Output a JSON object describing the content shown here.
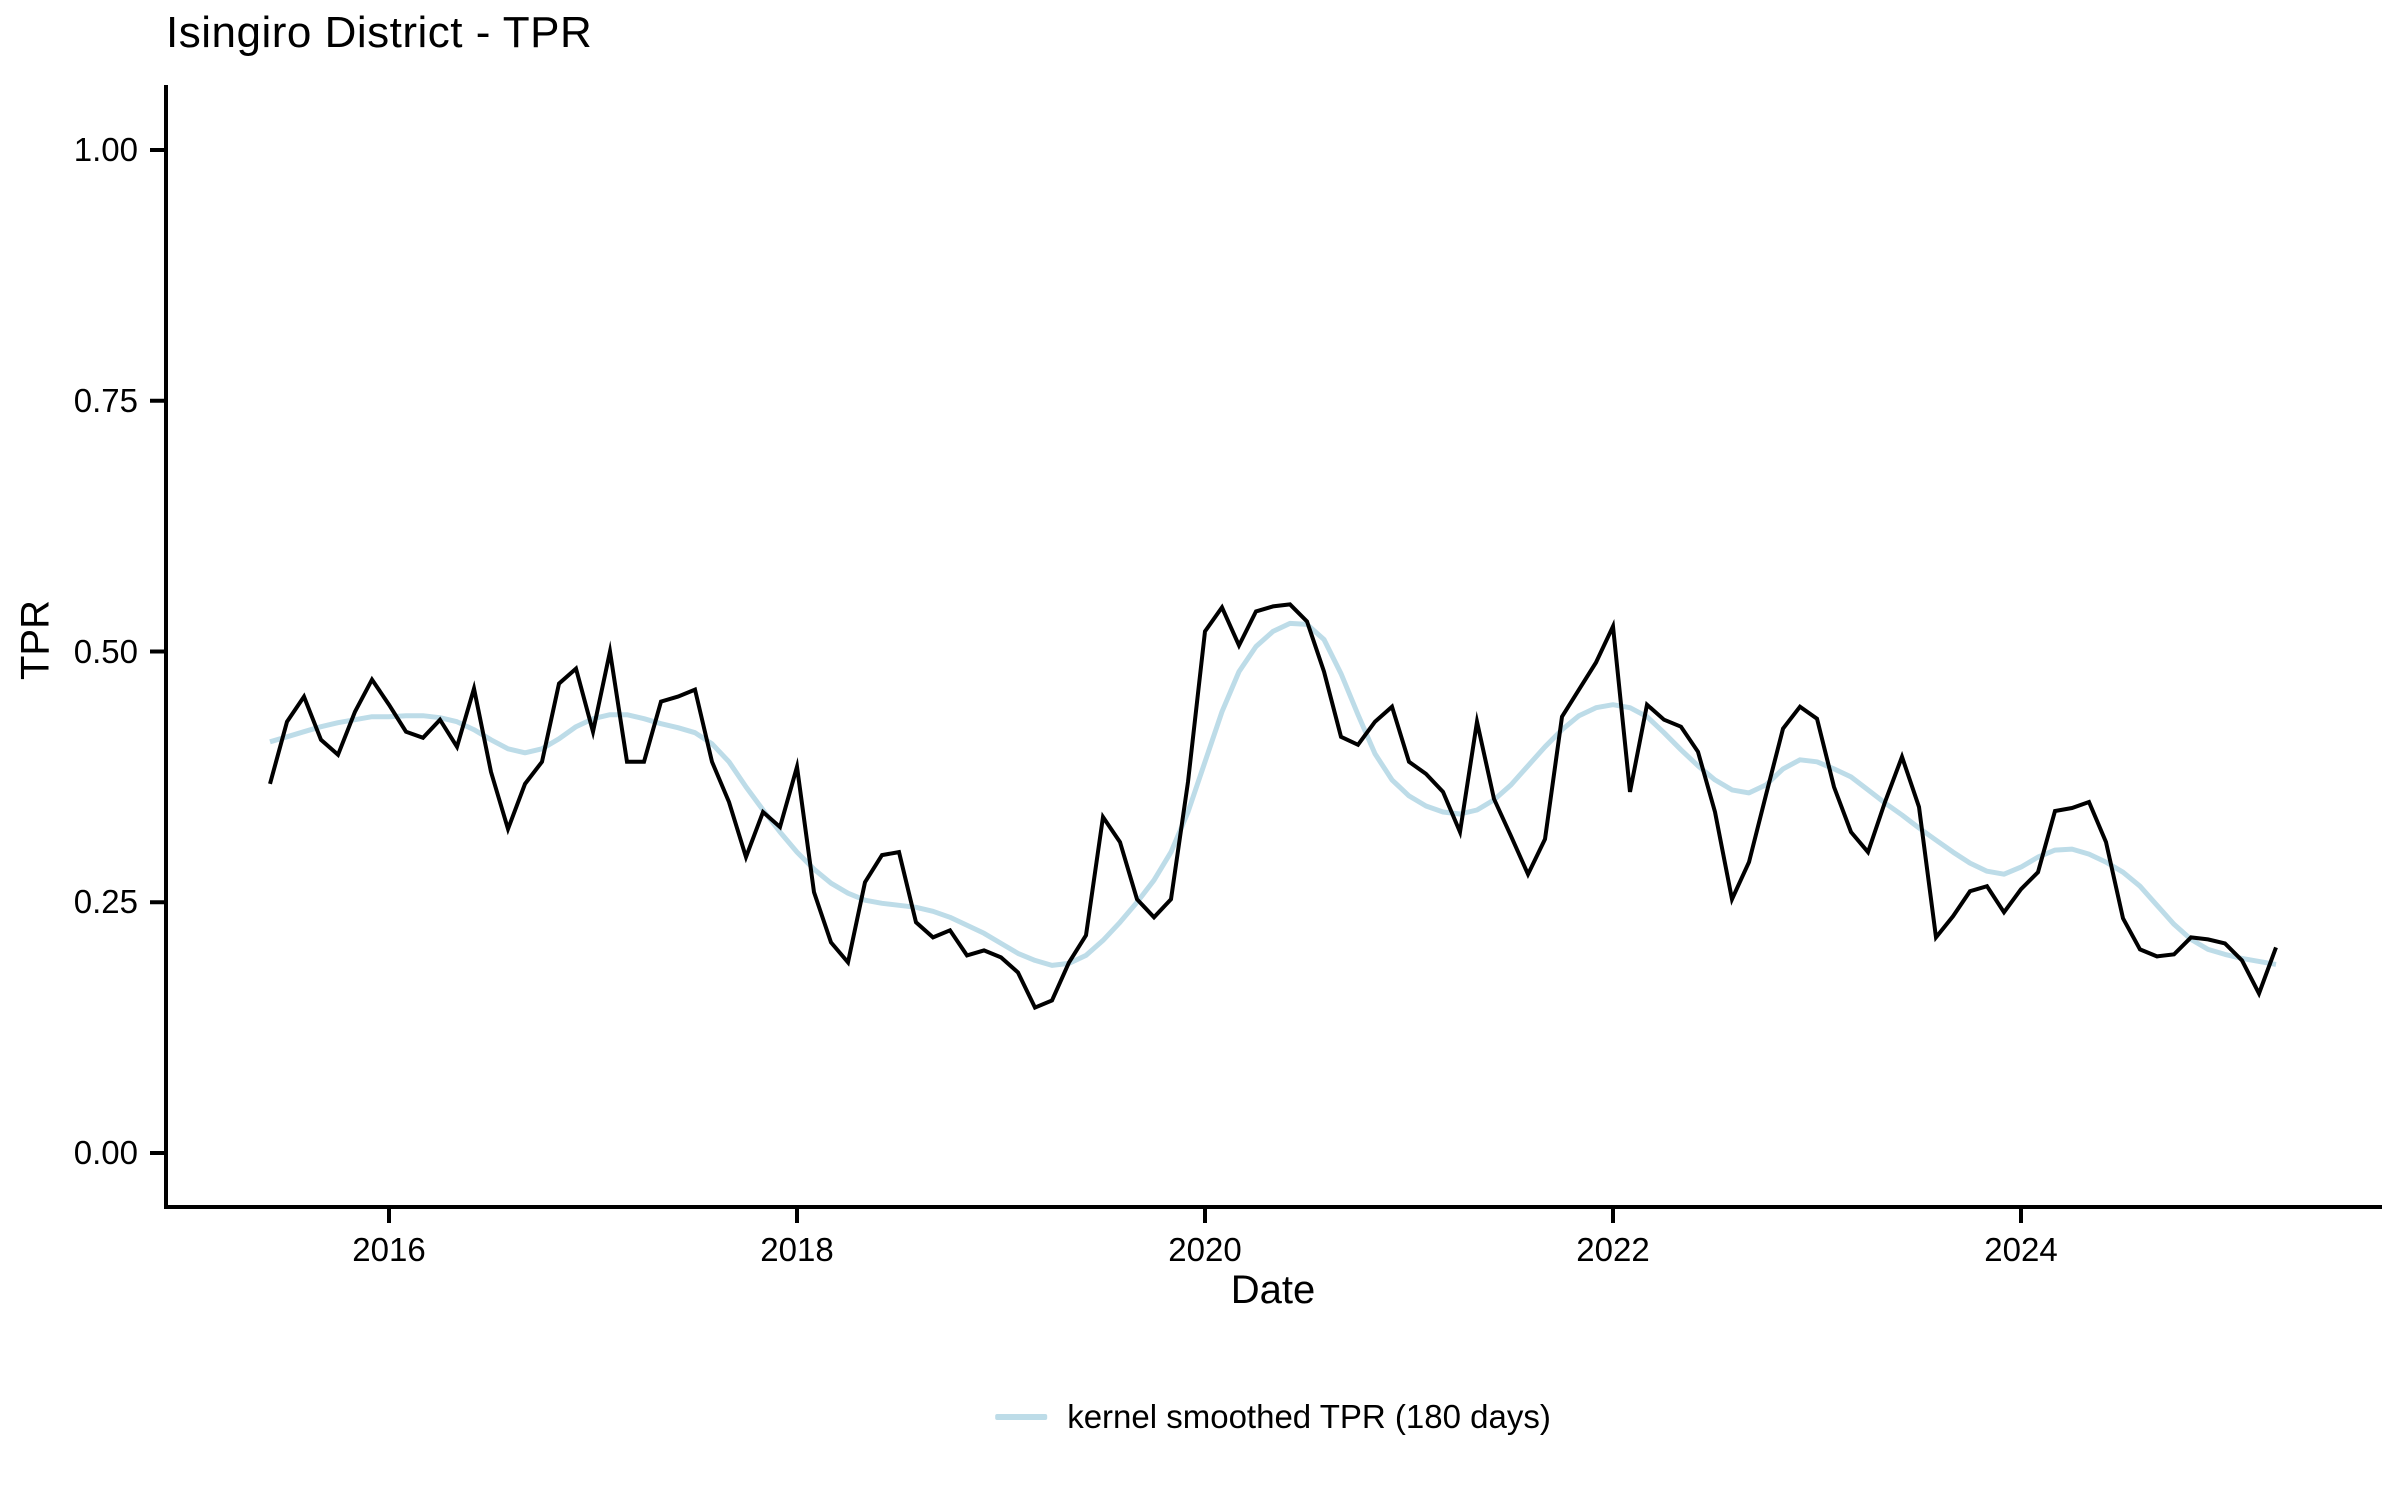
{
  "title": "Isingiro District - TPR",
  "x_axis": {
    "label": "Date",
    "ticks": [
      "2016",
      "2018",
      "2020",
      "2022",
      "2024"
    ]
  },
  "y_axis": {
    "label": "TPR",
    "ticks": [
      "0.00",
      "0.25",
      "0.50",
      "0.75",
      "1.00"
    ]
  },
  "legend": {
    "label": "kernel smoothed TPR (180 days)",
    "swatch_color": "#BDDCE8"
  },
  "colors": {
    "background": "#FFFFFF",
    "tpr_line": "#000000",
    "smoothed_line": "#BDDCE8",
    "axis": "#000000",
    "text": "#000000"
  },
  "chart_data": {
    "type": "line",
    "title": "Isingiro District - TPR",
    "xlabel": "Date",
    "ylabel": "TPR",
    "ylim": [
      0,
      1
    ],
    "y_ticks": [
      0,
      0.25,
      0.5,
      0.75,
      1.0
    ],
    "x_tick_years": [
      2016,
      2018,
      2020,
      2022,
      2024
    ],
    "grid": false,
    "legend_position": "bottom",
    "x_monthly_start": "2015-06",
    "x_monthly_end": "2025-04",
    "months": [
      "2015-06",
      "2015-07",
      "2015-08",
      "2015-09",
      "2015-10",
      "2015-11",
      "2015-12",
      "2016-01",
      "2016-02",
      "2016-03",
      "2016-04",
      "2016-05",
      "2016-06",
      "2016-07",
      "2016-08",
      "2016-09",
      "2016-10",
      "2016-11",
      "2016-12",
      "2017-01",
      "2017-02",
      "2017-03",
      "2017-04",
      "2017-05",
      "2017-06",
      "2017-07",
      "2017-08",
      "2017-09",
      "2017-10",
      "2017-11",
      "2017-12",
      "2018-01",
      "2018-02",
      "2018-03",
      "2018-04",
      "2018-05",
      "2018-06",
      "2018-07",
      "2018-08",
      "2018-09",
      "2018-10",
      "2018-11",
      "2018-12",
      "2019-01",
      "2019-02",
      "2019-03",
      "2019-04",
      "2019-05",
      "2019-06",
      "2019-07",
      "2019-08",
      "2019-09",
      "2019-10",
      "2019-11",
      "2019-12",
      "2020-01",
      "2020-02",
      "2020-03",
      "2020-04",
      "2020-05",
      "2020-06",
      "2020-07",
      "2020-08",
      "2020-09",
      "2020-10",
      "2020-11",
      "2020-12",
      "2021-01",
      "2021-02",
      "2021-03",
      "2021-04",
      "2021-05",
      "2021-06",
      "2021-07",
      "2021-08",
      "2021-09",
      "2021-10",
      "2021-11",
      "2021-12",
      "2022-01",
      "2022-02",
      "2022-03",
      "2022-04",
      "2022-05",
      "2022-06",
      "2022-07",
      "2022-08",
      "2022-09",
      "2022-10",
      "2022-11",
      "2022-12",
      "2023-01",
      "2023-02",
      "2023-03",
      "2023-04",
      "2023-05",
      "2023-06",
      "2023-07",
      "2023-08",
      "2023-09",
      "2023-10",
      "2023-11",
      "2023-12",
      "2024-01",
      "2024-02",
      "2024-03",
      "2024-04",
      "2024-05",
      "2024-06",
      "2024-07",
      "2024-08",
      "2024-09",
      "2024-10",
      "2024-11",
      "2024-12",
      "2025-01",
      "2025-02",
      "2025-03",
      "2025-04"
    ],
    "series": [
      {
        "name": "TPR",
        "color": "#000000",
        "values": [
          0.368,
          0.43,
          0.455,
          0.412,
          0.397,
          0.44,
          0.472,
          0.447,
          0.42,
          0.414,
          0.432,
          0.405,
          0.463,
          0.38,
          0.323,
          0.368,
          0.39,
          0.468,
          0.483,
          0.42,
          0.5,
          0.39,
          0.39,
          0.45,
          0.455,
          0.462,
          0.39,
          0.35,
          0.295,
          0.34,
          0.325,
          0.385,
          0.26,
          0.21,
          0.19,
          0.27,
          0.297,
          0.3,
          0.23,
          0.215,
          0.222,
          0.197,
          0.202,
          0.195,
          0.18,
          0.145,
          0.152,
          0.19,
          0.217,
          0.335,
          0.31,
          0.253,
          0.235,
          0.253,
          0.37,
          0.52,
          0.544,
          0.506,
          0.54,
          0.545,
          0.547,
          0.53,
          0.48,
          0.415,
          0.407,
          0.43,
          0.445,
          0.39,
          0.378,
          0.36,
          0.32,
          0.43,
          0.353,
          0.316,
          0.278,
          0.313,
          0.435,
          0.462,
          0.489,
          0.525,
          0.36,
          0.447,
          0.432,
          0.425,
          0.4,
          0.34,
          0.253,
          0.29,
          0.357,
          0.423,
          0.445,
          0.433,
          0.365,
          0.32,
          0.3,
          0.35,
          0.395,
          0.345,
          0.215,
          0.236,
          0.261,
          0.266,
          0.24,
          0.263,
          0.28,
          0.341,
          0.344,
          0.35,
          0.31,
          0.234,
          0.203,
          0.196,
          0.198,
          0.215,
          0.213,
          0.209,
          0.192,
          0.159,
          0.205
        ]
      },
      {
        "name": "kernel smoothed TPR (180 days)",
        "color": "#BDDCE8",
        "values": [
          0.41,
          0.415,
          0.42,
          0.425,
          0.429,
          0.432,
          0.435,
          0.435,
          0.436,
          0.436,
          0.434,
          0.43,
          0.422,
          0.412,
          0.403,
          0.399,
          0.403,
          0.413,
          0.425,
          0.433,
          0.437,
          0.437,
          0.433,
          0.428,
          0.424,
          0.419,
          0.408,
          0.39,
          0.365,
          0.342,
          0.32,
          0.3,
          0.283,
          0.269,
          0.259,
          0.252,
          0.249,
          0.247,
          0.245,
          0.241,
          0.235,
          0.227,
          0.219,
          0.209,
          0.199,
          0.192,
          0.187,
          0.189,
          0.197,
          0.212,
          0.23,
          0.25,
          0.272,
          0.3,
          0.34,
          0.39,
          0.44,
          0.48,
          0.505,
          0.52,
          0.528,
          0.527,
          0.512,
          0.478,
          0.437,
          0.398,
          0.372,
          0.356,
          0.346,
          0.34,
          0.338,
          0.342,
          0.352,
          0.367,
          0.386,
          0.405,
          0.422,
          0.436,
          0.444,
          0.447,
          0.444,
          0.435,
          0.419,
          0.402,
          0.386,
          0.372,
          0.362,
          0.359,
          0.367,
          0.383,
          0.392,
          0.39,
          0.383,
          0.375,
          0.362,
          0.349,
          0.337,
          0.324,
          0.312,
          0.3,
          0.289,
          0.281,
          0.278,
          0.285,
          0.295,
          0.302,
          0.303,
          0.298,
          0.29,
          0.28,
          0.266,
          0.247,
          0.228,
          0.213,
          0.203,
          0.198,
          0.194,
          0.191,
          0.188
        ]
      }
    ]
  }
}
